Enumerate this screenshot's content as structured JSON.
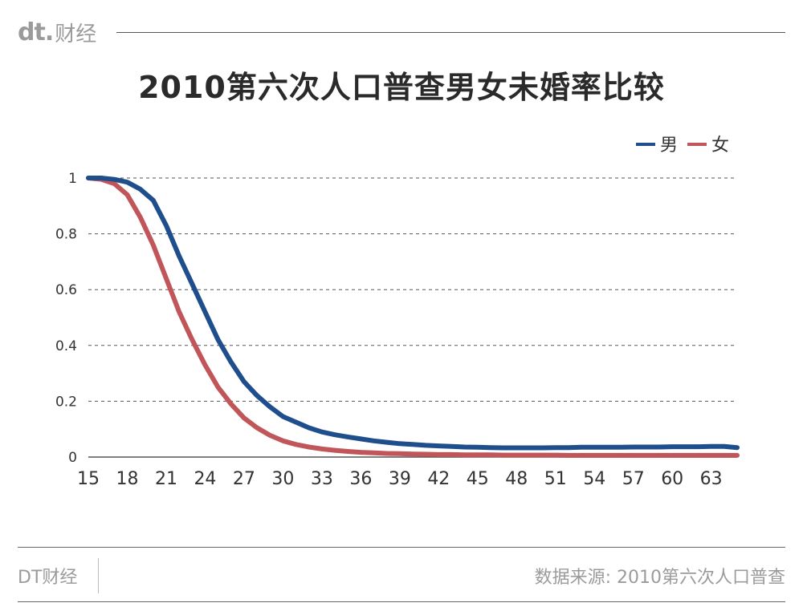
{
  "header": {
    "logo": "dt.",
    "brand": "财经"
  },
  "footer": {
    "brand": "DT财经",
    "source": "数据来源: 2010第六次人口普查"
  },
  "colors": {
    "male": "#1f4e8c",
    "female": "#c0565a",
    "grid": "#555555"
  },
  "chart_data": {
    "type": "line",
    "title": "2010第六次人口普查男女未婚率比较",
    "xlabel": "",
    "ylabel": "",
    "x_tick_labels": [
      "15",
      "18",
      "21",
      "24",
      "27",
      "30",
      "33",
      "36",
      "39",
      "42",
      "45",
      "48",
      "51",
      "54",
      "57",
      "60",
      "63"
    ],
    "y_tick_labels": [
      "0",
      "0.2",
      "0.4",
      "0.6",
      "0.8",
      "1"
    ],
    "ylim": [
      0,
      1
    ],
    "xlim": [
      15,
      65
    ],
    "grid": true,
    "legend": "top-right",
    "x": [
      15,
      16,
      17,
      18,
      19,
      20,
      21,
      22,
      23,
      24,
      25,
      26,
      27,
      28,
      29,
      30,
      31,
      32,
      33,
      34,
      35,
      36,
      37,
      38,
      39,
      40,
      41,
      42,
      43,
      44,
      45,
      46,
      47,
      48,
      49,
      50,
      51,
      52,
      53,
      54,
      55,
      56,
      57,
      58,
      59,
      60,
      61,
      62,
      63,
      64,
      65
    ],
    "series": [
      {
        "name": "男",
        "values": [
          1.0,
          1.0,
          0.995,
          0.985,
          0.96,
          0.92,
          0.83,
          0.72,
          0.62,
          0.52,
          0.42,
          0.34,
          0.27,
          0.22,
          0.18,
          0.145,
          0.125,
          0.105,
          0.09,
          0.08,
          0.072,
          0.065,
          0.058,
          0.053,
          0.048,
          0.045,
          0.042,
          0.04,
          0.038,
          0.036,
          0.035,
          0.034,
          0.033,
          0.033,
          0.033,
          0.033,
          0.034,
          0.034,
          0.035,
          0.035,
          0.035,
          0.035,
          0.036,
          0.036,
          0.036,
          0.037,
          0.037,
          0.037,
          0.038,
          0.038,
          0.034
        ]
      },
      {
        "name": "女",
        "values": [
          1.0,
          0.995,
          0.98,
          0.94,
          0.86,
          0.76,
          0.64,
          0.52,
          0.42,
          0.33,
          0.25,
          0.19,
          0.14,
          0.105,
          0.078,
          0.058,
          0.045,
          0.036,
          0.029,
          0.024,
          0.02,
          0.017,
          0.015,
          0.013,
          0.012,
          0.011,
          0.01,
          0.009,
          0.009,
          0.008,
          0.008,
          0.008,
          0.007,
          0.007,
          0.007,
          0.007,
          0.007,
          0.006,
          0.006,
          0.006,
          0.006,
          0.006,
          0.006,
          0.006,
          0.006,
          0.006,
          0.006,
          0.006,
          0.006,
          0.006,
          0.006
        ]
      }
    ]
  }
}
